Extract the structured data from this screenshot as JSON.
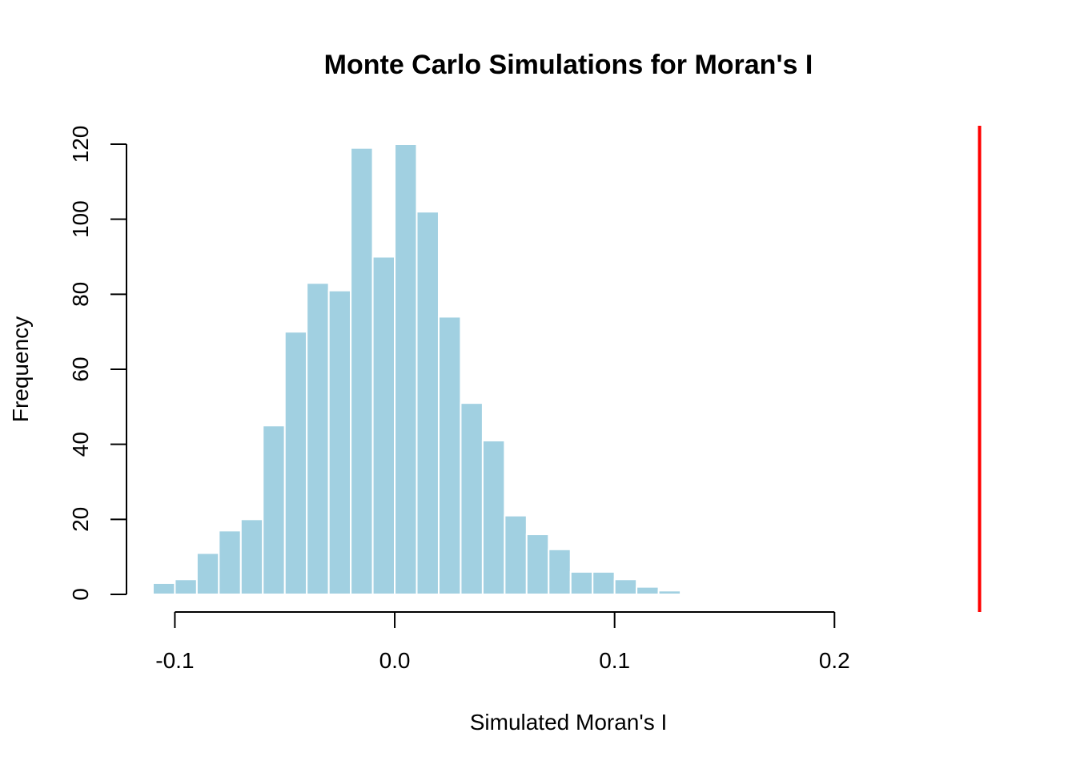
{
  "chart_data": {
    "type": "bar",
    "title": "Monte Carlo Simulations for Moran's I",
    "xlabel": "Simulated Moran's I",
    "ylabel": "Frequency",
    "bin_width": 0.01,
    "bin_starts": [
      -0.11,
      -0.1,
      -0.09,
      -0.08,
      -0.07,
      -0.06,
      -0.05,
      -0.04,
      -0.03,
      -0.02,
      -0.01,
      0.0,
      0.01,
      0.02,
      0.03,
      0.04,
      0.05,
      0.06,
      0.07,
      0.08,
      0.09,
      0.1,
      0.11,
      0.12
    ],
    "values": [
      3,
      4,
      11,
      17,
      20,
      45,
      70,
      83,
      81,
      119,
      90,
      120,
      102,
      74,
      51,
      41,
      21,
      16,
      12,
      6,
      6,
      4,
      2,
      1
    ],
    "xlim": [
      -0.122,
      0.28
    ],
    "ylim": [
      0,
      120
    ],
    "x_ticks": [
      -0.1,
      0.0,
      0.1,
      0.2
    ],
    "x_tick_labels": [
      "-0.1",
      "0.0",
      "0.1",
      "0.2"
    ],
    "y_ticks": [
      0,
      20,
      40,
      60,
      80,
      100,
      120
    ],
    "y_tick_labels": [
      "0",
      "20",
      "40",
      "60",
      "80",
      "100",
      "120"
    ],
    "observed_value": 0.266,
    "bar_color": "#a1d0e1",
    "observed_line_color": "#ff0000",
    "grid": false,
    "legend": "none"
  }
}
